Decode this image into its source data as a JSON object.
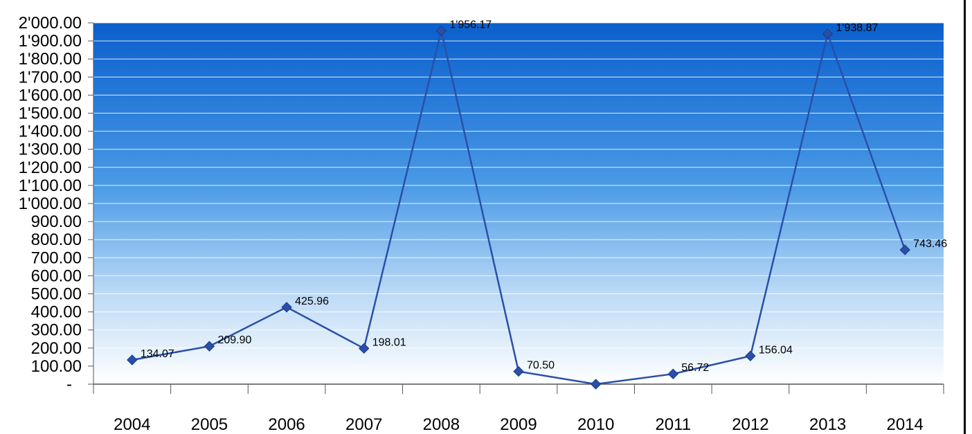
{
  "chart_data": {
    "type": "line",
    "categories": [
      "2004",
      "2005",
      "2006",
      "2007",
      "2008",
      "2009",
      "2010",
      "2011",
      "2012",
      "2013",
      "2014"
    ],
    "series": [
      {
        "values": [
          134.07,
          209.9,
          425.96,
          198.01,
          1956.17,
          70.5,
          0,
          56.72,
          156.04,
          1938.87,
          743.46
        ],
        "data_labels": [
          "134.07",
          "209.90",
          "425.96",
          "198.01",
          "1'956.17",
          "70.50",
          "",
          "56.72",
          "156.04",
          "1'938.87",
          "743.46"
        ]
      }
    ],
    "y_ticks": [
      {
        "value": 0,
        "label": "-"
      },
      {
        "value": 100,
        "label": "100.00"
      },
      {
        "value": 200,
        "label": "200.00"
      },
      {
        "value": 300,
        "label": "300.00"
      },
      {
        "value": 400,
        "label": "400.00"
      },
      {
        "value": 500,
        "label": "500.00"
      },
      {
        "value": 600,
        "label": "600.00"
      },
      {
        "value": 700,
        "label": "700.00"
      },
      {
        "value": 800,
        "label": "800.00"
      },
      {
        "value": 900,
        "label": "900.00"
      },
      {
        "value": 1000,
        "label": "1'000.00"
      },
      {
        "value": 1100,
        "label": "1'100.00"
      },
      {
        "value": 1200,
        "label": "1'200.00"
      },
      {
        "value": 1300,
        "label": "1'300.00"
      },
      {
        "value": 1400,
        "label": "1'400.00"
      },
      {
        "value": 1500,
        "label": "1'500.00"
      },
      {
        "value": 1600,
        "label": "1'600.00"
      },
      {
        "value": 1700,
        "label": "1'700.00"
      },
      {
        "value": 1800,
        "label": "1'800.00"
      },
      {
        "value": 1900,
        "label": "1'900.00"
      },
      {
        "value": 2000,
        "label": "2'000.00"
      }
    ],
    "ylim": [
      0,
      2000
    ],
    "grid": true,
    "legend": "none",
    "colors": {
      "line": "#2a4fa8",
      "marker": "#2a4fa8",
      "gradient_top": "#0a5fcc",
      "gradient_bottom": "#ffffff",
      "grid": "#ffffff",
      "axis": "#555555"
    }
  }
}
